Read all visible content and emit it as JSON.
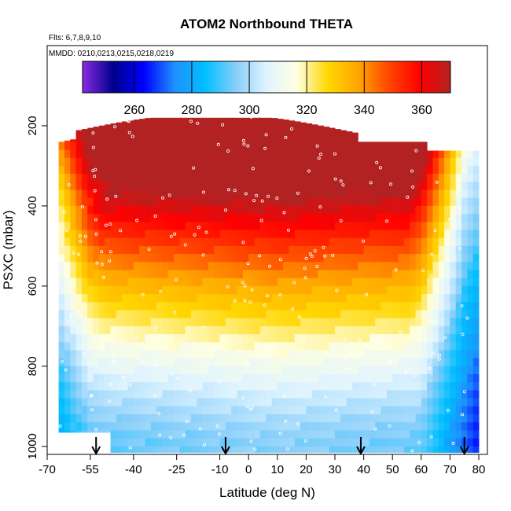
{
  "chart_data": {
    "type": "heatmap",
    "title": "ATOM2 Northbound THETA",
    "flights_note": "Flts: 6,7,8,9,10",
    "dates_note": "MMDD: 0210,0213,0215,0218,0219",
    "xlabel": "Latitude (deg N)",
    "ylabel": "PSXC (mbar)",
    "xlim": [
      -70,
      83
    ],
    "ylim": [
      1020,
      0
    ],
    "x_ticks": [
      -70,
      -55,
      -40,
      -25,
      -10,
      0,
      10,
      20,
      30,
      40,
      50,
      60,
      70,
      80
    ],
    "y_ticks": [
      200,
      400,
      600,
      800,
      1000
    ],
    "colorbar": {
      "vmin": 242,
      "vmax": 370,
      "ticks": [
        260,
        280,
        300,
        320,
        340,
        360
      ],
      "colors": [
        "#8a2be2",
        "#00008b",
        "#0000ff",
        "#1e90ff",
        "#00bfff",
        "#87cefa",
        "#e0f4ff",
        "#ffffe0",
        "#ffd700",
        "#ffa500",
        "#ff4500",
        "#ff0000",
        "#b22222"
      ]
    },
    "profile_markers_lat": [
      -53,
      -8,
      39,
      75
    ],
    "variable": "THETA (K)"
  }
}
